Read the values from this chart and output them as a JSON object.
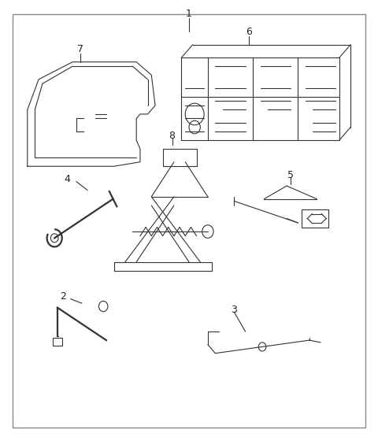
{
  "background_color": "#ffffff",
  "border_color": "#888888",
  "border_linewidth": 1.0,
  "fig_width": 4.8,
  "fig_height": 5.55,
  "dpi": 100,
  "line_color": "#333333",
  "line_width": 0.8,
  "label_fontsize": 9
}
